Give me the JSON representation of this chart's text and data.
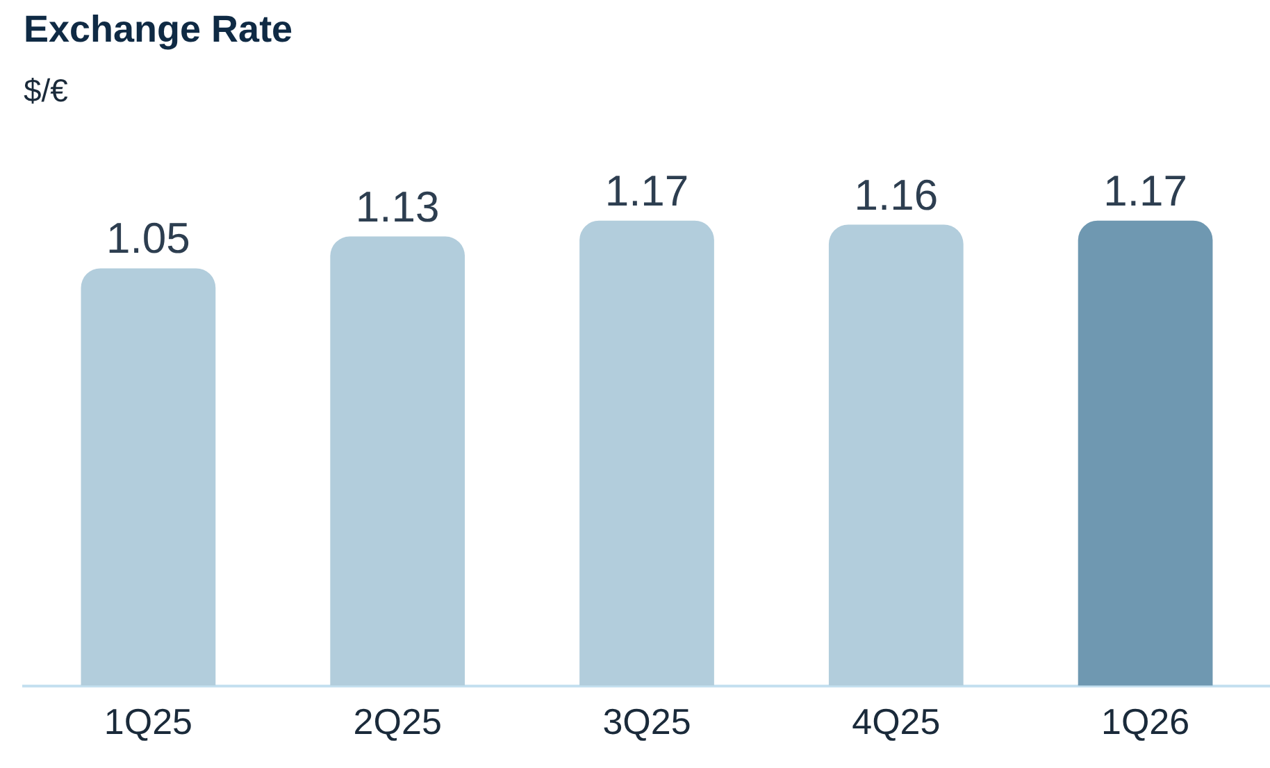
{
  "chart_data": {
    "type": "bar",
    "title": "Exchange Rate",
    "subtitle": "$/€",
    "categories": [
      "1Q25",
      "2Q25",
      "3Q25",
      "4Q25",
      "1Q26"
    ],
    "values": [
      1.05,
      1.13,
      1.17,
      1.16,
      1.17
    ],
    "colors": [
      "#b2cddc",
      "#b2cddc",
      "#b2cddc",
      "#b2cddc",
      "#6f98b1"
    ],
    "data_labels": true,
    "grid": false,
    "legend": false
  }
}
